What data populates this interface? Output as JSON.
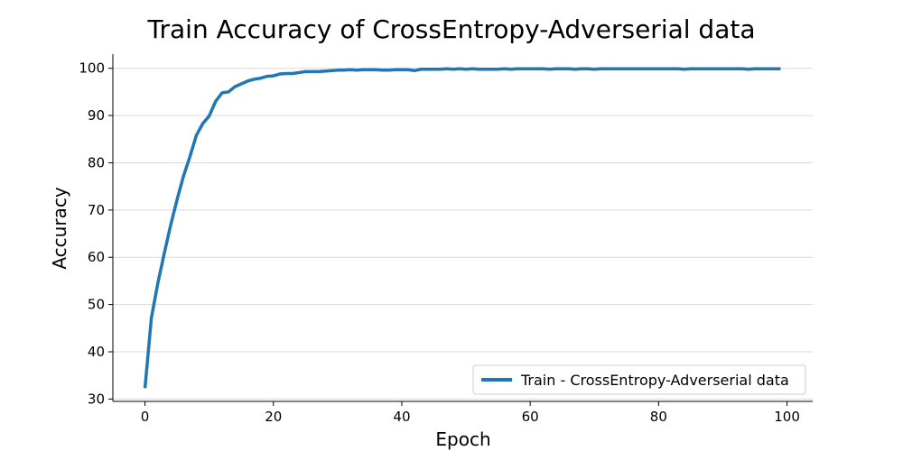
{
  "chart_data": {
    "type": "line",
    "title": "Train Accuracy of CrossEntropy-Adverserial data",
    "xlabel": "Epoch",
    "ylabel": "Accuracy",
    "xlim": [
      -5,
      104
    ],
    "ylim": [
      29.5,
      103
    ],
    "xticks": [
      0,
      20,
      40,
      60,
      80,
      100
    ],
    "yticks": [
      30,
      40,
      50,
      60,
      70,
      80,
      90,
      100
    ],
    "grid": "horizontal",
    "legend_position": "lower-right",
    "series": [
      {
        "name": "Train - CrossEntropy-Adverserial data",
        "color": "#1f77b4",
        "x": [
          0,
          1,
          2,
          3,
          4,
          5,
          6,
          7,
          8,
          9,
          10,
          11,
          12,
          13,
          14,
          15,
          16,
          17,
          18,
          19,
          20,
          21,
          22,
          23,
          24,
          25,
          26,
          27,
          28,
          29,
          30,
          31,
          32,
          33,
          34,
          35,
          36,
          37,
          38,
          39,
          40,
          41,
          42,
          43,
          44,
          45,
          46,
          47,
          48,
          49,
          50,
          51,
          52,
          53,
          54,
          55,
          56,
          57,
          58,
          59,
          60,
          61,
          62,
          63,
          64,
          65,
          66,
          67,
          68,
          69,
          70,
          71,
          72,
          73,
          74,
          75,
          76,
          77,
          78,
          79,
          80,
          81,
          82,
          83,
          84,
          85,
          86,
          87,
          88,
          89,
          90,
          91,
          92,
          93,
          94,
          95,
          96,
          97,
          98,
          99
        ],
        "y": [
          32.3,
          47.2,
          54.5,
          60.8,
          66.8,
          72.2,
          77.2,
          81.3,
          85.8,
          88.3,
          89.9,
          93.0,
          94.8,
          95.0,
          96.1,
          96.7,
          97.3,
          97.7,
          97.9,
          98.3,
          98.4,
          98.8,
          98.9,
          98.9,
          99.1,
          99.3,
          99.3,
          99.3,
          99.4,
          99.5,
          99.6,
          99.6,
          99.7,
          99.6,
          99.7,
          99.7,
          99.7,
          99.6,
          99.6,
          99.7,
          99.7,
          99.7,
          99.5,
          99.8,
          99.8,
          99.8,
          99.8,
          99.9,
          99.8,
          99.9,
          99.8,
          99.9,
          99.8,
          99.8,
          99.8,
          99.8,
          99.9,
          99.8,
          99.9,
          99.9,
          99.9,
          99.9,
          99.9,
          99.8,
          99.9,
          99.9,
          99.9,
          99.8,
          99.9,
          99.9,
          99.8,
          99.9,
          99.9,
          99.9,
          99.9,
          99.9,
          99.9,
          99.9,
          99.9,
          99.9,
          99.9,
          99.9,
          99.9,
          99.9,
          99.8,
          99.9,
          99.9,
          99.9,
          99.9,
          99.9,
          99.9,
          99.9,
          99.9,
          99.9,
          99.8,
          99.9,
          99.9,
          99.9,
          99.9,
          99.9
        ]
      }
    ]
  }
}
